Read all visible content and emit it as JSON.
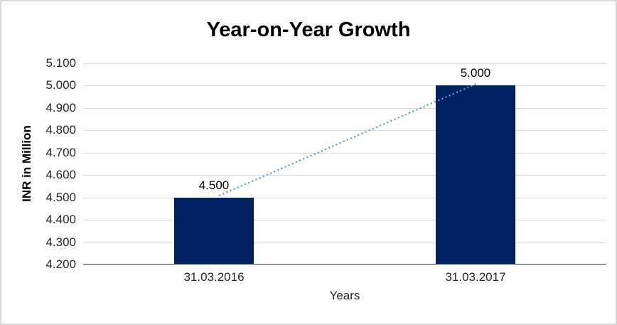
{
  "chart_data": {
    "type": "bar",
    "title": "Year-on-Year Growth",
    "xlabel": "Years",
    "ylabel": "INR in Million",
    "categories": [
      "31.03.2016",
      "31.03.2017"
    ],
    "values": [
      4.5,
      5.0
    ],
    "data_labels": [
      "4.500",
      "5.000"
    ],
    "ylim": [
      4.2,
      5.1
    ],
    "ytick_step": 0.1,
    "ytick_labels": [
      "4.200",
      "4.300",
      "4.400",
      "4.500",
      "4.600",
      "4.700",
      "4.800",
      "4.900",
      "5.000",
      "5.100"
    ],
    "grid": true,
    "legend_position": "none",
    "bar_color": "#002060",
    "gridline_color": "#d9d9d9",
    "trendline": {
      "style": "dotted",
      "color": "#5b9bd5",
      "from_value": 4.5,
      "to_value": 5.0
    }
  }
}
